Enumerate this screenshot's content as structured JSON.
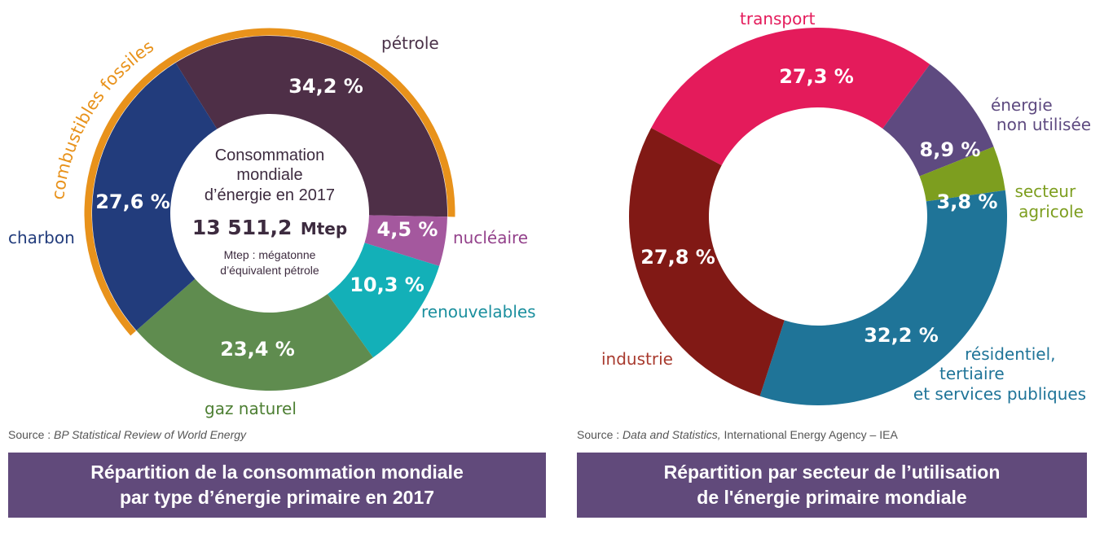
{
  "chart_data": [
    {
      "type": "pie",
      "title": "Répartition de la consommation mondiale par type d'énergie primaire en 2017",
      "title_lines": [
        "Répartition de la consommation mondiale",
        "par type d’énergie primaire en 2017"
      ],
      "center": {
        "line1": "Consommation",
        "line2": "mondiale",
        "line3": "d’énergie en 2017",
        "total": "13 511,2",
        "unit": "Mtep",
        "note1": "Mtep : mégatonne",
        "note2": "d’équivalent pétrole"
      },
      "group": {
        "label": "combustibles fossiles",
        "members": [
          "pétrole",
          "charbon",
          "gaz naturel"
        ],
        "color": "#e8921b"
      },
      "slices": [
        {
          "label": "pétrole",
          "value": 34.2,
          "display": "34,2 %",
          "color": "#4e2f47",
          "label_color": "#4a3148"
        },
        {
          "label": "nucléaire",
          "value": 4.5,
          "display": "4,5 %",
          "color": "#a4589e",
          "label_color": "#93418b"
        },
        {
          "label": "renouvelables",
          "value": 10.3,
          "display": "10,3 %",
          "color": "#13b0b8",
          "label_color": "#1b8f9e"
        },
        {
          "label": "gaz naturel",
          "value": 23.4,
          "display": "23,4 %",
          "color": "#5f8c4f",
          "label_color": "#4d7f33"
        },
        {
          "label": "charbon",
          "value": 27.6,
          "display": "27,6 %",
          "color": "#223c7c",
          "label_color": "#223c7c"
        }
      ],
      "source_prefix": "Source : ",
      "source_italic": "BP Statistical Review of World Energy",
      "source_rest": ""
    },
    {
      "type": "pie",
      "title": "Répartition par secteur de l'utilisation de l'énergie primaire mondiale",
      "title_lines": [
        "Répartition par secteur de l’utilisation",
        "de l'énergie primaire mondiale"
      ],
      "slices": [
        {
          "label": "transport",
          "value": 27.3,
          "display": "27,3 %",
          "color": "#e41b5b",
          "label_color": "#e41b5b"
        },
        {
          "label": "énergie non utilisée",
          "label_lines": [
            "énergie",
            "non utilisée"
          ],
          "value": 8.9,
          "display": "8,9 %",
          "color": "#5e4a80",
          "label_color": "#5e4a80"
        },
        {
          "label": "secteur agricole",
          "label_lines": [
            "secteur",
            "agricole"
          ],
          "value": 3.8,
          "display": "3,8 %",
          "color": "#7d9e1f",
          "label_color": "#7d9e1f"
        },
        {
          "label": "résidentiel, tertiaire et services publiques",
          "label_lines": [
            "résidentiel,",
            "tertiaire",
            "et services publiques"
          ],
          "value": 32.2,
          "display": "32,2 %",
          "color": "#1f7498",
          "label_color": "#1f7498"
        },
        {
          "label": "industrie",
          "value": 27.8,
          "display": "27,8 %",
          "color": "#811915",
          "label_color": "#a83a2e"
        }
      ],
      "source_prefix": "Source : ",
      "source_italic": "Data and Statistics,",
      "source_rest": " International Energy Agency – IEA"
    }
  ]
}
